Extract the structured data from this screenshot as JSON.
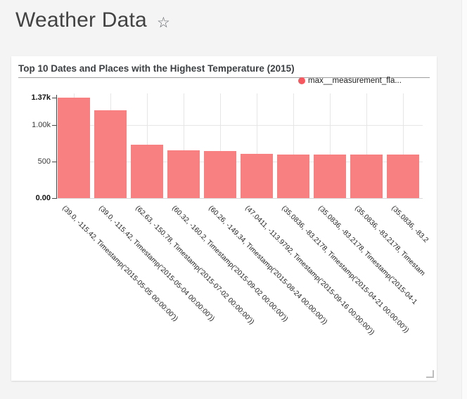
{
  "page": {
    "title": "Weather Data",
    "star_icon": "☆"
  },
  "panel": {
    "legend": {
      "label": "max__measurement_fla...",
      "color": "#f5585e"
    }
  },
  "chart_data": {
    "type": "bar",
    "title": "Top 10 Dates and Places with the Highest Temperature (2015)",
    "categories": [
      "(39.0, -115.42, Timestamp('2015-05-05 00:00:00'))",
      "(39.0, -115.42, Timestamp('2015-05-04 00:00:00'))",
      "(62.63, -150.78, Timestamp('2015-07-02 00:00:00'))",
      "(60.32, -160.2, Timestamp('2015-09-02 00:00:00'))",
      "(60.26, -149.34, Timestamp('2015-08-24 00:00:00'))",
      "(47.0411, -113.9792, Timestamp('2015-09-16 00:00:00'))",
      "(35.0836, -83.2178, Timestamp('2015-04-21 00:00:00'))",
      "(35.0836, -83.2178, Timestamp('2015-04-1",
      "(35.0836, -83.2178, Timestam",
      "(35.0836, -83.2"
    ],
    "values": [
      1370,
      1200,
      730,
      650,
      645,
      600,
      595,
      595,
      595,
      595
    ],
    "series_name": "max__measurement_fla...",
    "bar_color": "#f88080",
    "xlabel": "",
    "ylabel": "",
    "ylim": [
      0,
      1370
    ],
    "yticks": [
      {
        "label": "1.37k",
        "value": 1370,
        "bold": true
      },
      {
        "label": "1.00k",
        "value": 1000,
        "bold": false
      },
      {
        "label": "500",
        "value": 500,
        "bold": false
      },
      {
        "label": "0.00",
        "value": 0,
        "bold": true
      }
    ],
    "grid": true,
    "legend_position": "top-right",
    "x_label_rotation_deg": 45
  }
}
